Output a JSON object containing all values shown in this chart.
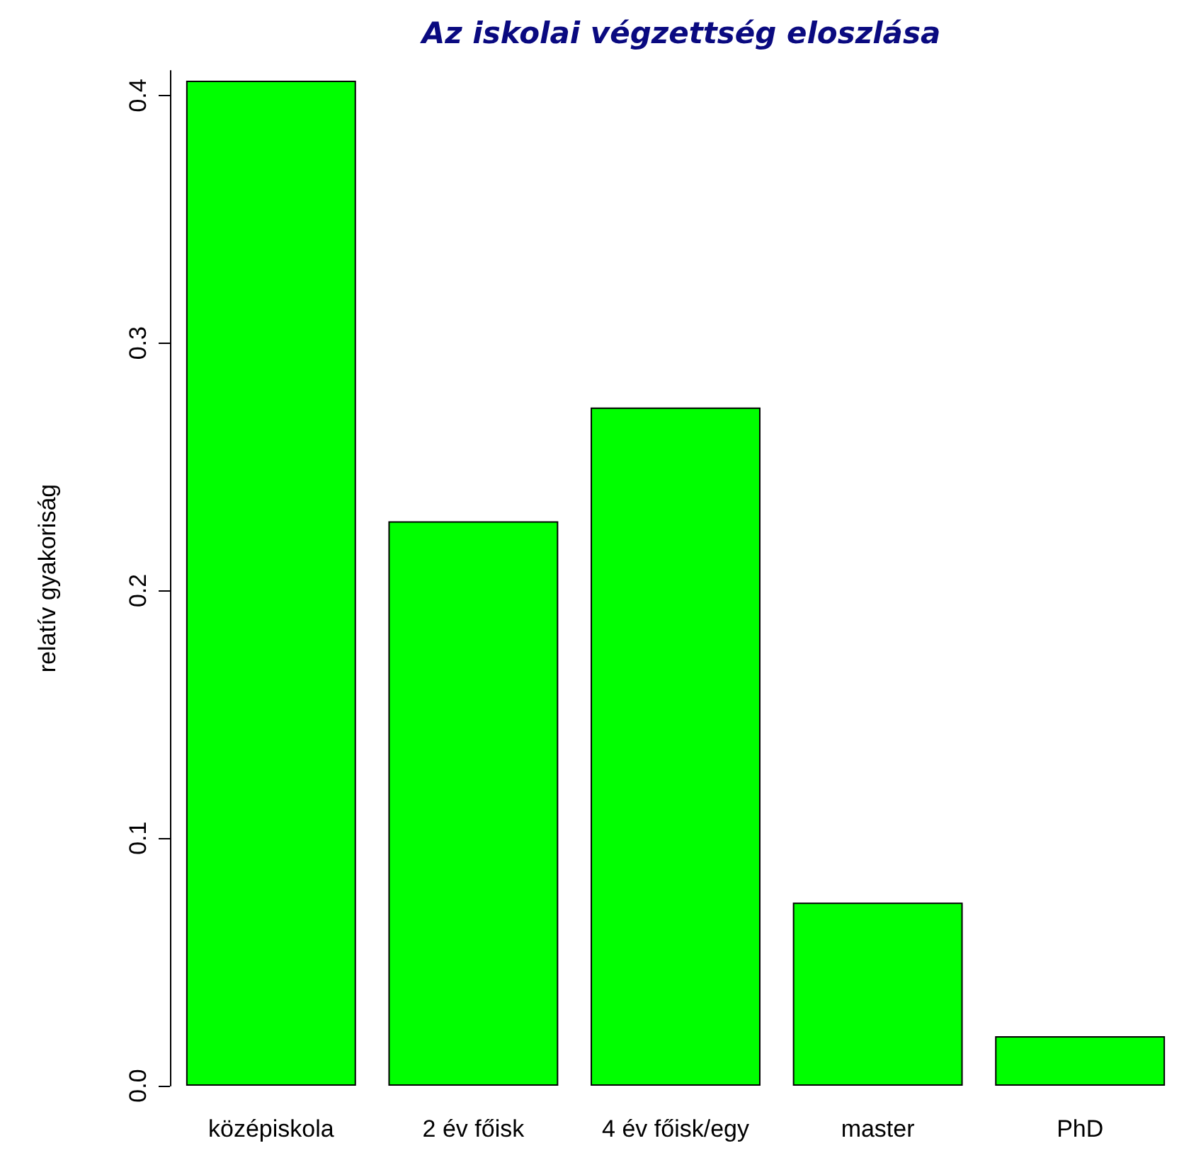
{
  "chart_data": {
    "type": "bar",
    "title": "Az iskolai végzettség eloszlása",
    "ylabel": "relatív gyakoriság",
    "categories": [
      "középiskola",
      "2 év főisk",
      "4 év főisk/egy",
      "master",
      "PhD"
    ],
    "values": [
      0.406,
      0.228,
      0.274,
      0.074,
      0.02
    ],
    "color": "#00ff00",
    "ylim": [
      0,
      0.41
    ],
    "yticks": [
      {
        "value": 0,
        "label": "0.0"
      },
      0.1,
      0.2,
      0.3,
      0.4
    ],
    "grid": false
  }
}
